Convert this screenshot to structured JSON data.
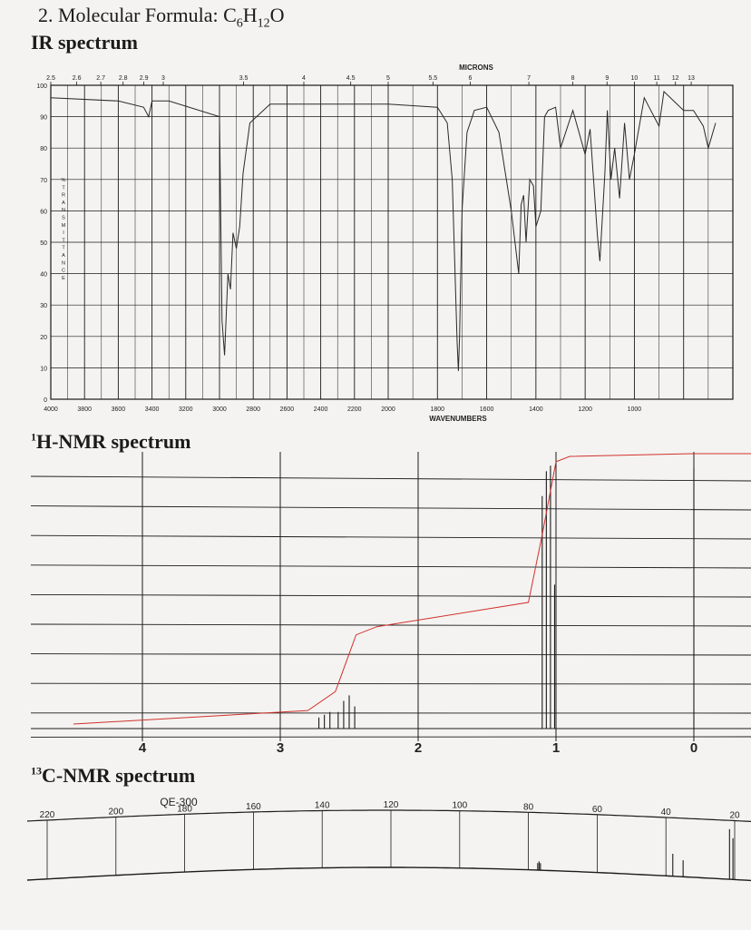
{
  "problem": {
    "number": "2.",
    "label": "Molecular Formula:",
    "formula_parts": [
      "C",
      "6",
      "H",
      "12",
      "O"
    ]
  },
  "ir": {
    "heading": "IR spectrum",
    "microns_label": "MICRONS",
    "micron_ticks": [
      "2.5",
      "2.6",
      "2.7",
      "2.8",
      "2.9",
      "3",
      "3.5",
      "4",
      "4.5",
      "5",
      "5.5",
      "6",
      "7",
      "8",
      "9",
      "10",
      "11",
      "12",
      "13"
    ],
    "y_ticks": [
      "100",
      "90",
      "80",
      "70",
      "60",
      "50",
      "40",
      "30",
      "20",
      "10",
      "0"
    ],
    "ylabel": "% TRANSMITTANCE",
    "x_ticks": [
      "4000",
      "3800",
      "3600",
      "3400",
      "3200",
      "3000",
      "2800",
      "2600",
      "2400",
      "2200",
      "2000",
      "1800",
      "1600",
      "1400",
      "1200",
      "1000"
    ],
    "xlabel": "WAVENUMBERS",
    "chart_data": {
      "type": "line",
      "xlabel": "WAVENUMBERS",
      "ylabel": "% TRANSMITTANCE",
      "xlim": [
        4000,
        600
      ],
      "ylim": [
        0,
        100
      ],
      "x_axis_direction": "decreasing",
      "series": [
        {
          "x": [
            4000,
            3600,
            3450,
            3420,
            3400,
            3300,
            3000,
            2985,
            2970,
            2950,
            2935,
            2920,
            2900,
            2880,
            2860,
            2820,
            2700,
            2400,
            2000,
            1800,
            1760,
            1740,
            1720,
            1715,
            1710,
            1700,
            1680,
            1650,
            1600,
            1550,
            1500,
            1470,
            1460,
            1450,
            1440,
            1425,
            1410,
            1400,
            1380,
            1365,
            1350,
            1320,
            1300,
            1250,
            1200,
            1180,
            1150,
            1140,
            1120,
            1110,
            1095,
            1080,
            1060,
            1040,
            1020,
            1000,
            960,
            940,
            900,
            880,
            800,
            760,
            720,
            700,
            670
          ],
          "y": [
            96,
            95,
            93,
            90,
            95,
            95,
            90,
            25,
            14,
            40,
            35,
            53,
            48,
            55,
            72,
            88,
            94,
            94,
            94,
            93,
            88,
            70,
            18,
            9,
            20,
            60,
            85,
            92,
            93,
            85,
            60,
            40,
            62,
            65,
            50,
            70,
            68,
            55,
            60,
            90,
            92,
            93,
            80,
            92,
            78,
            86,
            52,
            44,
            72,
            92,
            70,
            80,
            64,
            88,
            70,
            78,
            96,
            93,
            87,
            98,
            92,
            92,
            87,
            80,
            88
          ]
        }
      ]
    }
  },
  "hnmr": {
    "heading": "1H-NMR spectrum",
    "heading_sup": "1",
    "heading_text": "H-NMR spectrum",
    "x_ticks": [
      "4",
      "3",
      "2",
      "1",
      "0"
    ],
    "chart_data": {
      "type": "line",
      "xlim": [
        4.5,
        -0.1
      ],
      "x_axis_direction": "decreasing",
      "peaks": [
        {
          "ppm": 2.72,
          "intensity": 0.04
        },
        {
          "ppm": 2.68,
          "intensity": 0.05
        },
        {
          "ppm": 2.64,
          "intensity": 0.06
        },
        {
          "ppm": 2.58,
          "intensity": 0.06
        },
        {
          "ppm": 2.54,
          "intensity": 0.1
        },
        {
          "ppm": 2.5,
          "intensity": 0.12
        },
        {
          "ppm": 2.46,
          "intensity": 0.08
        },
        {
          "ppm": 1.1,
          "intensity": 0.84
        },
        {
          "ppm": 1.07,
          "intensity": 0.93
        },
        {
          "ppm": 1.04,
          "intensity": 0.95
        },
        {
          "ppm": 1.01,
          "intensity": 0.52
        },
        {
          "ppm": 0.0,
          "intensity": 0.94
        }
      ],
      "integral": {
        "ppm": [
          4.5,
          2.8,
          2.6,
          2.45,
          2.3,
          1.2,
          1.1,
          1.0,
          0.9,
          0.0
        ],
        "level": [
          0.0,
          0.05,
          0.12,
          0.33,
          0.36,
          0.45,
          0.7,
          0.97,
          0.99,
          1.0
        ]
      }
    }
  },
  "cnmr": {
    "heading": "13C-NMR spectrum",
    "heading_sup": "13",
    "heading_text": "C-NMR spectrum",
    "instrument": "QE-300",
    "x_ticks": [
      "220",
      "200",
      "180",
      "160",
      "140",
      "120",
      "100",
      "80",
      "60",
      "40",
      "20"
    ],
    "chart_data": {
      "type": "line",
      "xlim": [
        225,
        15
      ],
      "x_axis_direction": "decreasing",
      "peaks": [
        {
          "ppm": 77.3,
          "intensity": 0.12
        },
        {
          "ppm": 76.9,
          "intensity": 0.15
        },
        {
          "ppm": 76.5,
          "intensity": 0.12
        },
        {
          "ppm": 38.0,
          "intensity": 0.38
        },
        {
          "ppm": 35.0,
          "intensity": 0.28
        },
        {
          "ppm": 21.5,
          "intensity": 0.85
        },
        {
          "ppm": 20.5,
          "intensity": 0.7
        }
      ]
    }
  },
  "colors": {
    "ink": "#1b1b1b",
    "integral": "#d0312d",
    "paper": "#f4f3f1"
  }
}
